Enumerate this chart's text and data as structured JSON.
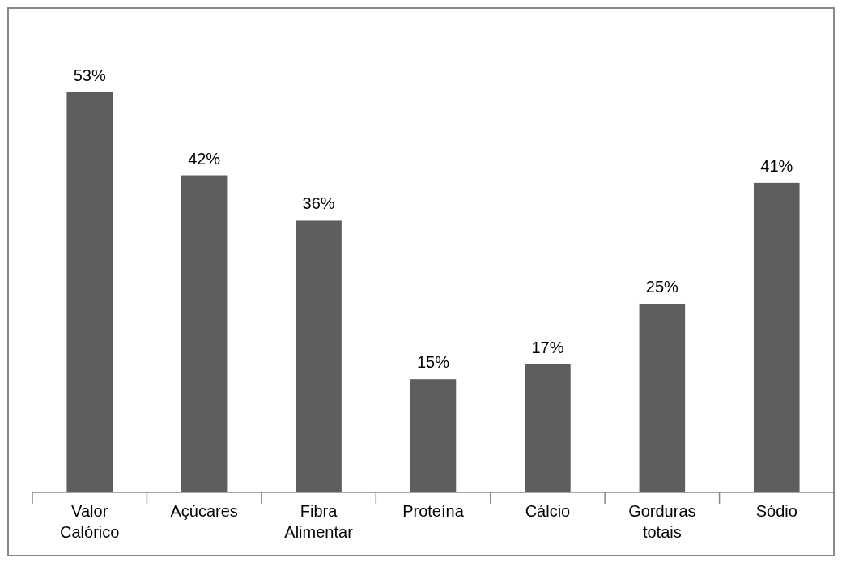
{
  "chart_data": {
    "type": "bar",
    "categories": [
      "Valor Calórico",
      "Açúcares",
      "Fibra Alimentar",
      "Proteína",
      "Cálcio",
      "Gorduras totais",
      "Sódio"
    ],
    "values": [
      53,
      42,
      36,
      15,
      17,
      25,
      41
    ],
    "value_labels": [
      "53%",
      "42%",
      "36%",
      "15%",
      "17%",
      "25%",
      "41%"
    ],
    "color": "#5e5e5e",
    "tick_labels": "x"
  }
}
